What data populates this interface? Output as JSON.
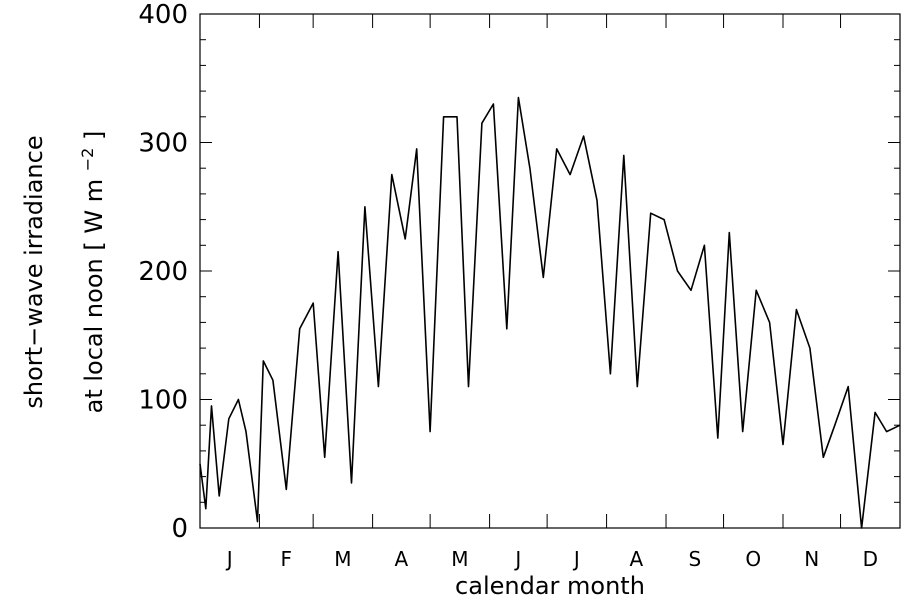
{
  "chart_data": {
    "type": "line",
    "xlabel": "calendar month",
    "ylabel": "short−wave irradiance",
    "ylabel2": "at local noon",
    "yunit_base": "W m",
    "yunit_exp": "−2",
    "ylim": [
      0,
      400
    ],
    "xlim": [
      0,
      365
    ],
    "yticks": [
      0,
      100,
      200,
      300,
      400
    ],
    "month_labels": [
      "J",
      "F",
      "M",
      "A",
      "M",
      "J",
      "J",
      "A",
      "S",
      "O",
      "N",
      "D"
    ],
    "grid": false,
    "series": [
      {
        "x": [
          0,
          3,
          6,
          10,
          15,
          20,
          24,
          30,
          33,
          38,
          45,
          52,
          59,
          65,
          72,
          79,
          86,
          93,
          100,
          107,
          113,
          120,
          127,
          134,
          140,
          147,
          153,
          160,
          166,
          172,
          179,
          186,
          193,
          200,
          207,
          214,
          221,
          228,
          235,
          242,
          249,
          256,
          263,
          270,
          276,
          283,
          290,
          297,
          304,
          311,
          318,
          325,
          331,
          338,
          345,
          352,
          358,
          365
        ],
        "y": [
          50,
          15,
          95,
          25,
          85,
          100,
          75,
          5,
          130,
          115,
          30,
          155,
          175,
          55,
          215,
          35,
          250,
          110,
          275,
          225,
          295,
          75,
          320,
          320,
          110,
          315,
          330,
          155,
          335,
          280,
          195,
          295,
          275,
          305,
          255,
          120,
          290,
          110,
          245,
          240,
          200,
          185,
          220,
          70,
          230,
          75,
          185,
          160,
          65,
          170,
          140,
          55,
          80,
          110,
          0,
          90,
          75,
          80
        ]
      }
    ]
  }
}
